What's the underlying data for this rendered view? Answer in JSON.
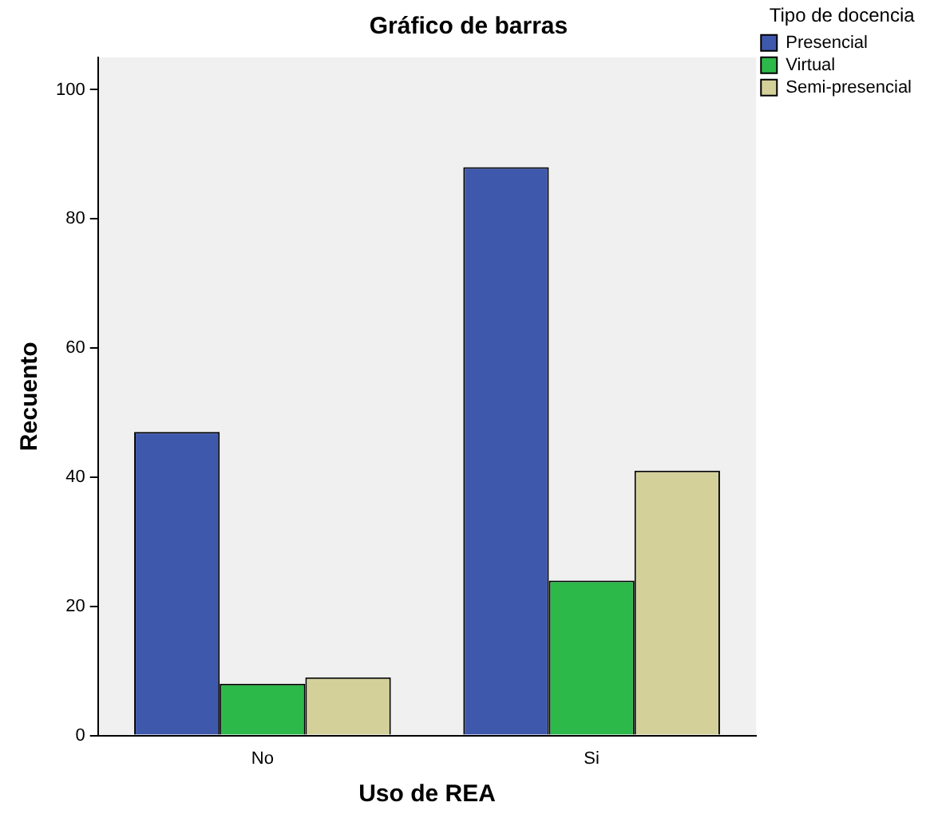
{
  "chart_data": {
    "type": "bar",
    "title": "Gráfico de barras",
    "xlabel": "Uso de REA",
    "ylabel": "Recuento",
    "legend_title": "Tipo de docencia",
    "categories": [
      "No",
      "Si"
    ],
    "series": [
      {
        "name": "Presencial",
        "color": "#3e58ac",
        "values": [
          47,
          88
        ]
      },
      {
        "name": "Virtual",
        "color": "#2db84a",
        "values": [
          8,
          24
        ]
      },
      {
        "name": "Semi-presencial",
        "color": "#d4d09a",
        "values": [
          9,
          41
        ]
      }
    ],
    "ylim": [
      0,
      105
    ],
    "yticks": [
      0,
      20,
      40,
      60,
      80,
      100
    ],
    "grid": false,
    "legend": "right"
  }
}
